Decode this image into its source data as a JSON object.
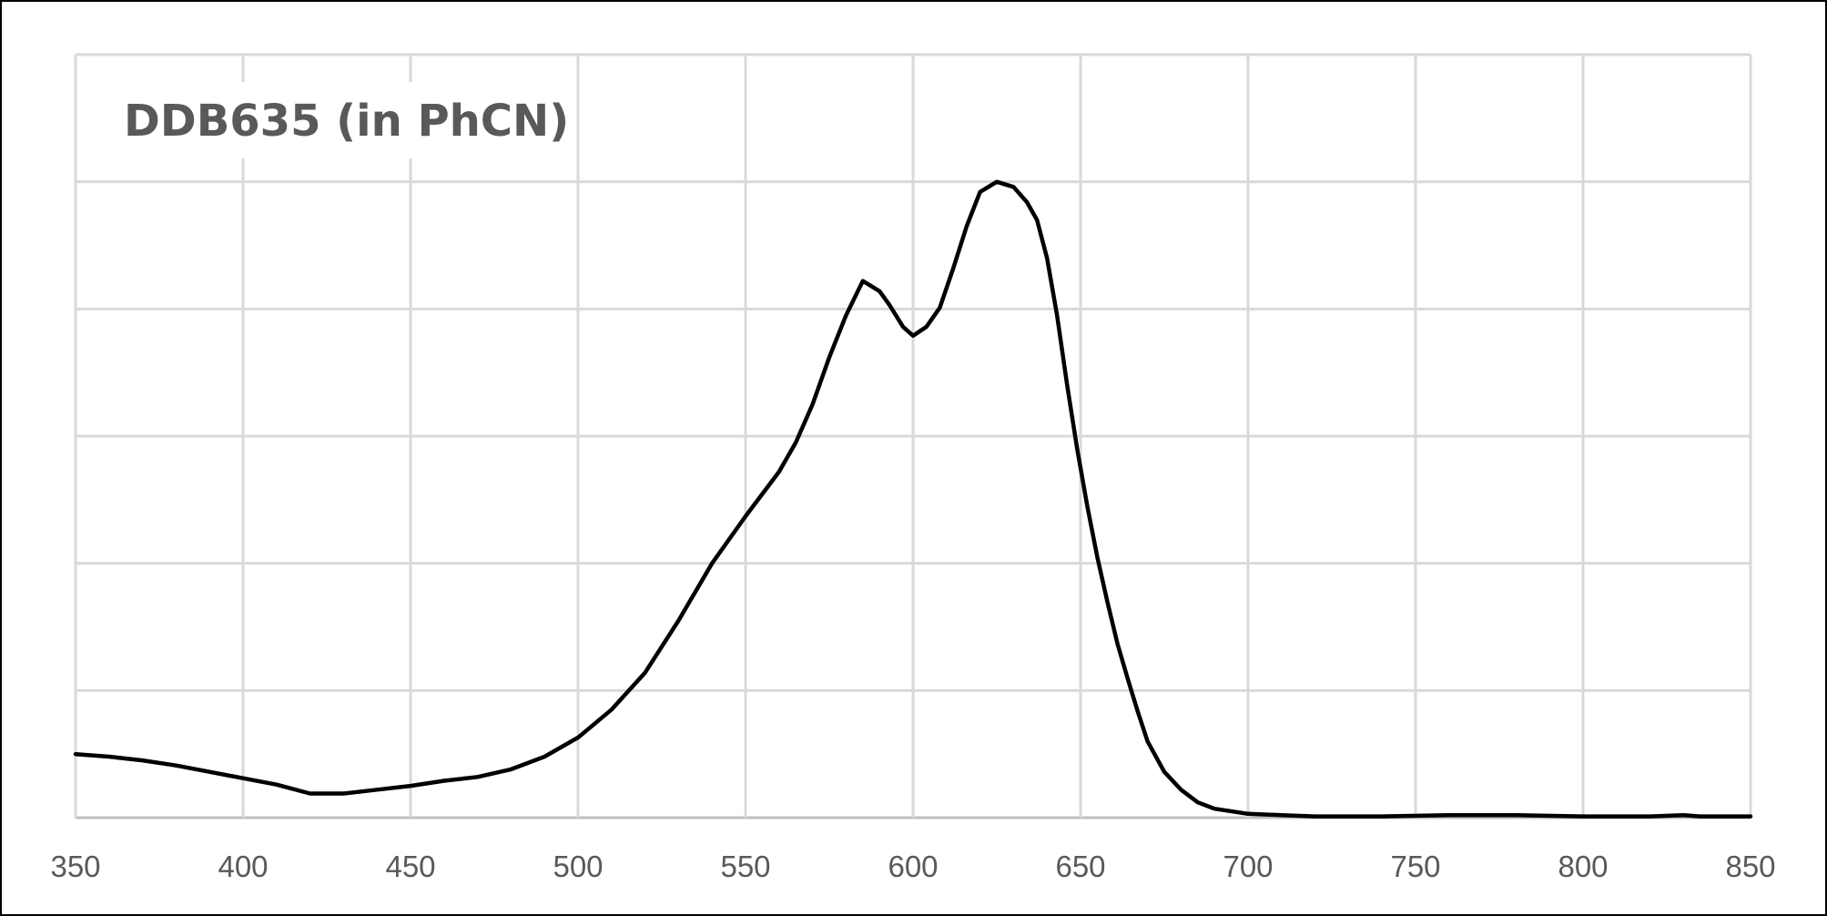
{
  "chart_data": {
    "type": "line",
    "title": "DDB635 (in PhCN)",
    "xlabel": "",
    "ylabel": "",
    "xlim": [
      350,
      850
    ],
    "ylim": [
      0,
      6
    ],
    "x_ticks": [
      350,
      400,
      450,
      500,
      550,
      600,
      650,
      700,
      750,
      800,
      850
    ],
    "y_gridlines": [
      0,
      1,
      2,
      3,
      4,
      5,
      6
    ],
    "y_tick_labels_shown": false,
    "grid": true,
    "legend": "none",
    "series": [
      {
        "color": "#000000",
        "x": [
          350,
          360,
          370,
          380,
          390,
          400,
          410,
          420,
          430,
          440,
          450,
          460,
          470,
          480,
          490,
          500,
          510,
          520,
          530,
          540,
          550,
          560,
          565,
          570,
          575,
          580,
          585,
          590,
          593,
          597,
          600,
          604,
          608,
          612,
          616,
          620,
          625,
          630,
          634,
          637,
          640,
          643,
          646,
          649,
          652,
          655,
          658,
          661,
          664,
          667,
          670,
          675,
          680,
          685,
          690,
          700,
          710,
          720,
          740,
          760,
          780,
          800,
          820,
          830,
          835,
          840,
          850
        ],
        "values": [
          0.5,
          0.48,
          0.45,
          0.41,
          0.36,
          0.31,
          0.26,
          0.19,
          0.19,
          0.22,
          0.25,
          0.29,
          0.32,
          0.38,
          0.48,
          0.63,
          0.85,
          1.14,
          1.55,
          2.0,
          2.37,
          2.72,
          2.95,
          3.25,
          3.62,
          3.95,
          4.22,
          4.14,
          4.03,
          3.86,
          3.79,
          3.86,
          4.01,
          4.32,
          4.65,
          4.92,
          5.0,
          4.96,
          4.84,
          4.7,
          4.4,
          3.95,
          3.4,
          2.9,
          2.45,
          2.05,
          1.7,
          1.37,
          1.1,
          0.84,
          0.6,
          0.36,
          0.22,
          0.12,
          0.07,
          0.03,
          0.02,
          0.01,
          0.01,
          0.02,
          0.02,
          0.01,
          0.01,
          0.02,
          0.01,
          0.01,
          0.01
        ]
      }
    ]
  }
}
